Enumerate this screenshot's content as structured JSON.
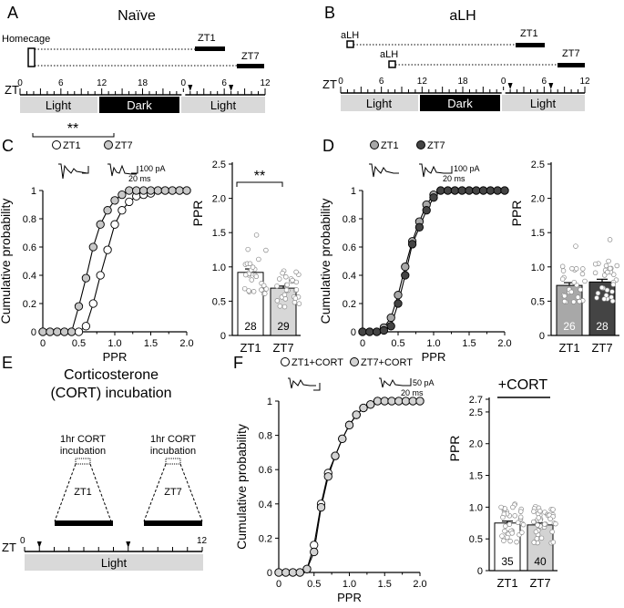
{
  "panels": {
    "A": {
      "letter": "A",
      "title": "Naïve",
      "homecage_label": "Homecage",
      "zt1_label": "ZT1",
      "zt7_label": "ZT7",
      "zt_label": "ZT",
      "ticks": [
        "0",
        "6",
        "12",
        "18",
        "0",
        "6",
        "12"
      ],
      "light_label": "Light",
      "dark_label": "Dark",
      "light2_label": "Light"
    },
    "B": {
      "letter": "B",
      "title": "aLH",
      "alh1_label": "aLH",
      "alh2_label": "aLH",
      "zt1_label": "ZT1",
      "zt7_label": "ZT7",
      "zt_label": "ZT",
      "ticks": [
        "0",
        "6",
        "12",
        "18",
        "0",
        "6",
        "12"
      ],
      "light_label": "Light",
      "dark_label": "Dark",
      "light2_label": "Light"
    },
    "C": {
      "letter": "C",
      "legend": [
        "ZT1",
        "ZT7"
      ],
      "sig_cdf": "**",
      "sig_bar": "**",
      "scale_pa": "100 pA",
      "scale_ms": "20 ms"
    },
    "D": {
      "letter": "D",
      "legend": [
        "ZT1",
        "ZT7"
      ],
      "scale_pa": "100 pA",
      "scale_ms": "20 ms"
    },
    "E": {
      "letter": "E",
      "title_line1": "Corticosterone",
      "title_line2": "(CORT) incubation",
      "inc1_line1": "1hr CORT",
      "inc1_line2": "incubation",
      "inc2_line1": "1hr CORT",
      "inc2_line2": "incubation",
      "zt1_label": "ZT1",
      "zt7_label": "ZT7",
      "zt_label": "ZT",
      "tick_start": "0",
      "tick_end": "12",
      "light_label": "Light"
    },
    "F": {
      "letter": "F",
      "legend": [
        "ZT1+CORT",
        "ZT7+CORT"
      ],
      "cort_label": "+CORT",
      "scale_pa": "50 pA",
      "scale_ms": "20 ms"
    }
  },
  "colors": {
    "light_bar": "#d9d9d9",
    "dark_bar": "#000000",
    "zt1_fill": "#ffffff",
    "zt7_fill_C": "#c8c8c8",
    "zt1_fill_D": "#a8a8a8",
    "zt7_fill_D": "#444444",
    "zt7_fill_F": "#d3d3d3"
  },
  "chart_data": [
    {
      "panel": "C",
      "type": "line",
      "xlabel": "PPR",
      "ylabel": "Cumulative probability",
      "xlim": [
        0,
        2.0
      ],
      "ylim": [
        0,
        1
      ],
      "xticks": [
        "0",
        "0.5",
        "1.0",
        "1.5",
        "2.0"
      ],
      "yticks": [
        "0",
        "0.2",
        "0.4",
        "0.6",
        "0.8",
        "1"
      ],
      "series": [
        {
          "name": "ZT1",
          "x": [
            0,
            0.1,
            0.2,
            0.3,
            0.4,
            0.5,
            0.6,
            0.7,
            0.8,
            0.9,
            1.0,
            1.1,
            1.2,
            1.3,
            1.4,
            1.5,
            1.6,
            1.7,
            1.8,
            1.9,
            2.0
          ],
          "y": [
            0,
            0,
            0,
            0,
            0,
            0,
            0.04,
            0.2,
            0.4,
            0.58,
            0.76,
            0.86,
            0.92,
            0.96,
            0.97,
            0.98,
            1,
            1,
            1,
            1,
            1
          ]
        },
        {
          "name": "ZT7",
          "x": [
            0,
            0.1,
            0.2,
            0.3,
            0.4,
            0.5,
            0.6,
            0.7,
            0.8,
            0.9,
            1.0,
            1.1,
            1.2,
            1.3,
            1.4,
            1.5,
            1.6,
            1.7,
            1.8,
            1.9,
            2.0
          ],
          "y": [
            0,
            0,
            0,
            0,
            0,
            0.18,
            0.38,
            0.6,
            0.76,
            0.86,
            0.93,
            0.97,
            1,
            1,
            1,
            1,
            1,
            1,
            1,
            1,
            1
          ]
        }
      ]
    },
    {
      "panel": "C",
      "type": "bar",
      "ylabel": "PPR",
      "ylim": [
        0,
        2.5
      ],
      "yticks": [
        "0",
        "0.5",
        "1.0",
        "1.5",
        "2.0",
        "2.5"
      ],
      "categories": [
        "ZT1",
        "ZT7"
      ],
      "values": [
        0.92,
        0.69
      ],
      "sem": [
        0.05,
        0.03
      ],
      "n": [
        "28",
        "29"
      ]
    },
    {
      "panel": "D",
      "type": "line",
      "xlabel": "PPR",
      "ylabel": "Cumulative probability",
      "xlim": [
        0,
        2.0
      ],
      "ylim": [
        0,
        1
      ],
      "xticks": [
        "0",
        "0.5",
        "1.0",
        "1.5",
        "2.0"
      ],
      "yticks": [
        "0",
        "0.2",
        "0.4",
        "0.6",
        "0.8",
        "1"
      ],
      "series": [
        {
          "name": "ZT1",
          "x": [
            0,
            0.1,
            0.2,
            0.3,
            0.4,
            0.5,
            0.6,
            0.7,
            0.8,
            0.9,
            1.0,
            1.1,
            1.2,
            1.3,
            1.4,
            1.5,
            1.6,
            1.7,
            1.8,
            1.9,
            2.0
          ],
          "y": [
            0,
            0,
            0,
            0.03,
            0.1,
            0.26,
            0.46,
            0.64,
            0.78,
            0.9,
            0.97,
            1,
            1,
            1,
            1,
            1,
            1,
            1,
            1,
            1,
            1
          ]
        },
        {
          "name": "ZT7",
          "x": [
            0,
            0.1,
            0.2,
            0.3,
            0.4,
            0.5,
            0.6,
            0.7,
            0.8,
            0.9,
            1.0,
            1.1,
            1.2,
            1.3,
            1.4,
            1.5,
            1.6,
            1.7,
            1.8,
            1.9,
            2.0
          ],
          "y": [
            0,
            0,
            0,
            0.01,
            0.04,
            0.2,
            0.4,
            0.62,
            0.74,
            0.86,
            0.95,
            1,
            1,
            1,
            1,
            1,
            1,
            1,
            1,
            1,
            1
          ]
        }
      ]
    },
    {
      "panel": "D",
      "type": "bar",
      "ylabel": "PPR",
      "ylim": [
        0,
        2.5
      ],
      "yticks": [
        "0",
        "0.5",
        "1.0",
        "1.5",
        "2.0",
        "2.5"
      ],
      "categories": [
        "ZT1",
        "ZT7"
      ],
      "values": [
        0.73,
        0.78
      ],
      "sem": [
        0.04,
        0.04
      ],
      "n": [
        "26",
        "28"
      ]
    },
    {
      "panel": "F",
      "type": "line",
      "xlabel": "PPR",
      "ylabel": "Cumulative probability",
      "xlim": [
        0,
        2.0
      ],
      "ylim": [
        0,
        1
      ],
      "xticks": [
        "0",
        "0.5",
        "1.0",
        "1.5",
        "2.0"
      ],
      "yticks": [
        "0",
        "0.2",
        "0.4",
        "0.6",
        "0.8",
        "1"
      ],
      "series": [
        {
          "name": "ZT1+CORT",
          "x": [
            0,
            0.1,
            0.2,
            0.3,
            0.4,
            0.5,
            0.6,
            0.7,
            0.8,
            0.9,
            1.0,
            1.1,
            1.2,
            1.3,
            1.4,
            1.5,
            1.6,
            1.7,
            1.8,
            1.9,
            2.0
          ],
          "y": [
            0,
            0,
            0,
            0,
            0.02,
            0.16,
            0.4,
            0.58,
            0.68,
            0.78,
            0.86,
            0.92,
            0.96,
            0.98,
            1,
            1,
            1,
            1,
            1,
            1,
            1
          ]
        },
        {
          "name": "ZT7+CORT",
          "x": [
            0,
            0.1,
            0.2,
            0.3,
            0.4,
            0.5,
            0.6,
            0.7,
            0.8,
            0.9,
            1.0,
            1.1,
            1.2,
            1.3,
            1.4,
            1.5,
            1.6,
            1.7,
            1.8,
            1.9,
            2.0
          ],
          "y": [
            0,
            0,
            0,
            0,
            0.02,
            0.12,
            0.38,
            0.56,
            0.68,
            0.78,
            0.86,
            0.92,
            0.96,
            0.98,
            1,
            1,
            1,
            1,
            1,
            1,
            1
          ]
        }
      ]
    },
    {
      "panel": "F",
      "type": "bar",
      "ylabel": "PPR",
      "ylim": [
        0,
        2.7
      ],
      "yticks": [
        "0",
        "0.5",
        "1.0",
        "1.5",
        "2.0",
        "2.5",
        "2.7"
      ],
      "categories": [
        "ZT1",
        "ZT7"
      ],
      "values": [
        0.75,
        0.72
      ],
      "sem": [
        0.03,
        0.03
      ],
      "n": [
        "35",
        "40"
      ]
    }
  ]
}
